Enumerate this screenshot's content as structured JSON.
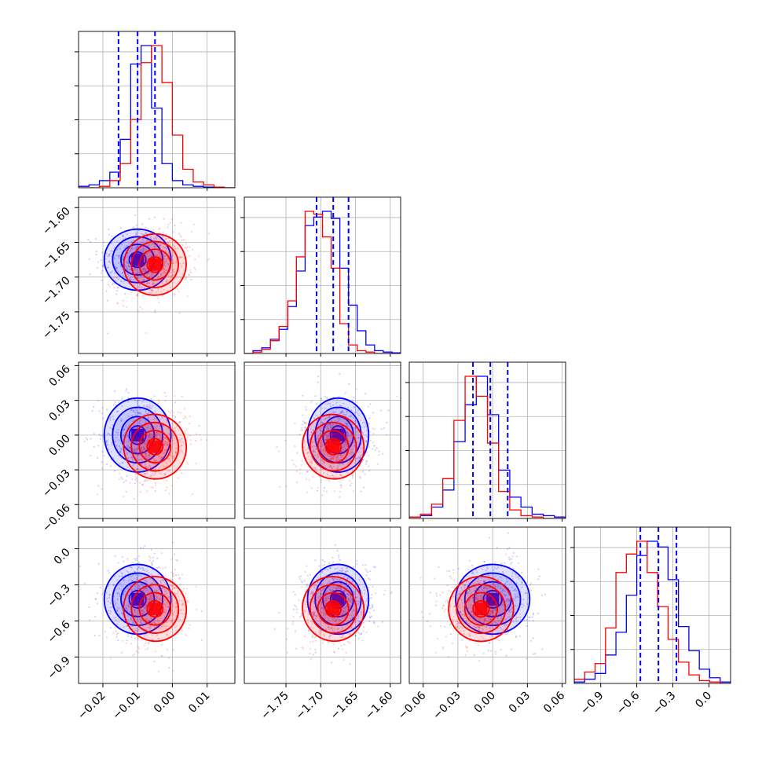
{
  "chart_data": {
    "type": "corner",
    "colors": {
      "blue": "#0000ff",
      "red": "#ff0000"
    },
    "series": [
      {
        "color": "#0000ff",
        "mean": [
          -0.01,
          -1.675,
          0.0,
          -0.42
        ],
        "sd": [
          0.0048,
          0.022,
          0.016,
          0.145
        ]
      },
      {
        "color": "#ff0000",
        "mean": [
          -0.005,
          -1.682,
          -0.01,
          -0.5
        ],
        "sd": [
          0.0045,
          0.022,
          0.014,
          0.135
        ]
      }
    ],
    "quantile_lines": [
      [
        -0.0155,
        -0.01,
        -0.005
      ],
      [
        -1.706,
        -1.682,
        -1.66
      ],
      [
        -0.017,
        -0.002,
        0.013
      ],
      [
        -0.57,
        -0.42,
        -0.27
      ]
    ],
    "axes_ranges": [
      [
        -0.027,
        0.018
      ],
      [
        -1.81,
        -1.585
      ],
      [
        -0.072,
        0.063
      ],
      [
        -1.12,
        0.18
      ]
    ],
    "histograms": {
      "blue": [
        [
          0.01,
          0.02,
          0.05,
          0.11,
          0.34,
          0.87,
          1.0,
          0.56,
          0.17,
          0.05,
          0.02,
          0.01,
          0.005,
          0.0,
          0.0
        ],
        [
          0.0,
          0.02,
          0.04,
          0.1,
          0.17,
          0.33,
          0.58,
          0.9,
          0.96,
          1.0,
          0.95,
          0.6,
          0.34,
          0.16,
          0.06,
          0.02,
          0.01,
          0.005
        ],
        [
          0.01,
          0.02,
          0.08,
          0.2,
          0.54,
          0.8,
          1.0,
          0.73,
          0.34,
          0.15,
          0.08,
          0.03,
          0.02,
          0.01
        ],
        [
          0.01,
          0.03,
          0.07,
          0.2,
          0.36,
          0.62,
          0.9,
          1.0,
          0.96,
          0.73,
          0.4,
          0.23,
          0.1,
          0.04,
          0.01
        ]
      ],
      "red": [
        [
          0.0,
          0.0,
          0.01,
          0.05,
          0.17,
          0.48,
          0.88,
          1.0,
          0.74,
          0.37,
          0.13,
          0.04,
          0.02,
          0.005,
          0.0
        ],
        [
          0.0,
          0.01,
          0.03,
          0.09,
          0.19,
          0.37,
          0.68,
          1.0,
          0.98,
          0.82,
          0.6,
          0.21,
          0.06,
          0.02,
          0.01,
          0.0,
          0.0,
          0.0
        ],
        [
          0.01,
          0.03,
          0.1,
          0.28,
          0.69,
          1.0,
          0.86,
          0.53,
          0.19,
          0.06,
          0.02,
          0.01,
          0.0,
          0.0
        ],
        [
          0.03,
          0.08,
          0.14,
          0.39,
          0.78,
          0.91,
          1.0,
          0.78,
          0.54,
          0.31,
          0.15,
          0.06,
          0.02,
          0.01,
          0.0
        ]
      ]
    },
    "ticks": [
      {
        "values": [
          -0.02,
          -0.01,
          0.0,
          0.01
        ],
        "labels": [
          "−0.02",
          "−0.01",
          "0.00",
          "0.01"
        ]
      },
      {
        "values": [
          -1.75,
          -1.7,
          -1.65,
          -1.6
        ],
        "labels": [
          "−1.75",
          "−1.70",
          "−1.65",
          "−1.60"
        ]
      },
      {
        "values": [
          -0.06,
          -0.03,
          0.0,
          0.03,
          0.06
        ],
        "labels": [
          "−0.06",
          "−0.03",
          "0.00",
          "0.03",
          "0.06"
        ]
      },
      {
        "values": [
          -0.9,
          -0.6,
          -0.3,
          0.0
        ],
        "labels": [
          "−0.9",
          "−0.6",
          "−0.3",
          "0.0"
        ]
      }
    ],
    "grid": true,
    "contour_levels": [
      0.5,
      1.0,
      1.5,
      2.0
    ]
  }
}
